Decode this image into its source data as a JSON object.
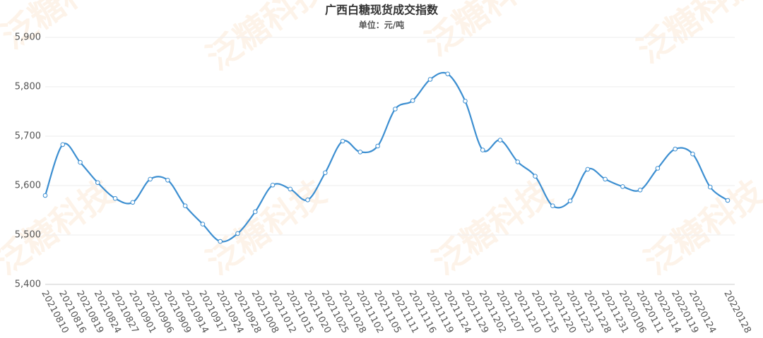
{
  "chart_data": {
    "type": "line",
    "title": "广西白糖现货成交指数",
    "subtitle": "单位：元/吨",
    "watermark": "泛糖科技",
    "categories": [
      "20210810",
      "20210816",
      "20210819",
      "20210824",
      "20210827",
      "20210901",
      "20210906",
      "20210909",
      "20210914",
      "20210917",
      "20210924",
      "20210928",
      "20211008",
      "20211012",
      "20211015",
      "20211020",
      "20211025",
      "20211028",
      "20211102",
      "20211105",
      "20211111",
      "20211116",
      "20211119",
      "20211124",
      "20211129",
      "20211202",
      "20211207",
      "20211210",
      "20211215",
      "20211220",
      "20211223",
      "20211228",
      "20211231",
      "20220106",
      "20220111",
      "20220114",
      "20220119",
      "20220124",
      null,
      "20220128"
    ],
    "values": [
      5580,
      5683,
      5647,
      5606,
      5574,
      5566,
      5613,
      5611,
      5559,
      5522,
      5487,
      5503,
      5547,
      5601,
      5593,
      5571,
      5626,
      5690,
      5668,
      5680,
      5755,
      5772,
      5815,
      5826,
      5771,
      5672,
      5692,
      5648,
      5619,
      5559,
      5569,
      5633,
      5613,
      5598,
      5591,
      5635,
      5674,
      5664,
      5597,
      5570
    ],
    "color": "#3d8fd1",
    "ylim": [
      5400,
      5900
    ],
    "yticks": [
      {
        "value": 5400,
        "label": "5,400"
      },
      {
        "value": 5500,
        "label": "5,500"
      },
      {
        "value": 5600,
        "label": "5,600"
      },
      {
        "value": 5700,
        "label": "5,700"
      },
      {
        "value": 5800,
        "label": "5,800"
      },
      {
        "value": 5900,
        "label": "5,900"
      }
    ],
    "grid": true
  }
}
